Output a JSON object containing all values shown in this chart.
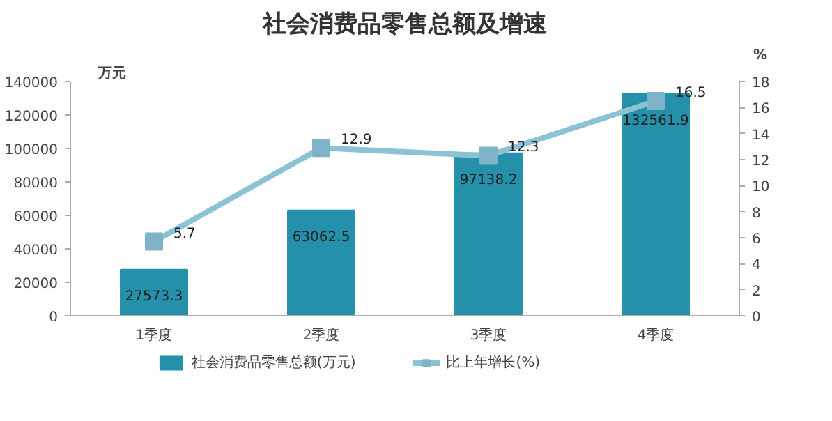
{
  "chart_data": {
    "type": "bar",
    "title": "社会消费品零售总额及增速",
    "ylabel": "万元",
    "y2label": "%",
    "categories": [
      "1季度",
      "2季度",
      "3季度",
      "4季度"
    ],
    "series": [
      {
        "name": "社会消费品零售总额(万元)",
        "color": "#2590aa",
        "values": [
          27573.3,
          63062.5,
          97138.2,
          132561.9
        ]
      },
      {
        "name": "比上年增长(%)",
        "type": "line",
        "axis": "y2",
        "color": "#8cc3d4",
        "marker": "square",
        "values": [
          5.7,
          12.9,
          12.3,
          16.5
        ]
      }
    ],
    "ylim": [
      0,
      140000
    ],
    "yticks": [
      0,
      20000,
      40000,
      60000,
      80000,
      100000,
      120000,
      140000
    ],
    "y2lim": [
      0,
      18
    ],
    "y2ticks": [
      0,
      2,
      4,
      6,
      8,
      10,
      12,
      14,
      16,
      18
    ],
    "data_labels": true,
    "grid": false,
    "legend": "bottom"
  }
}
